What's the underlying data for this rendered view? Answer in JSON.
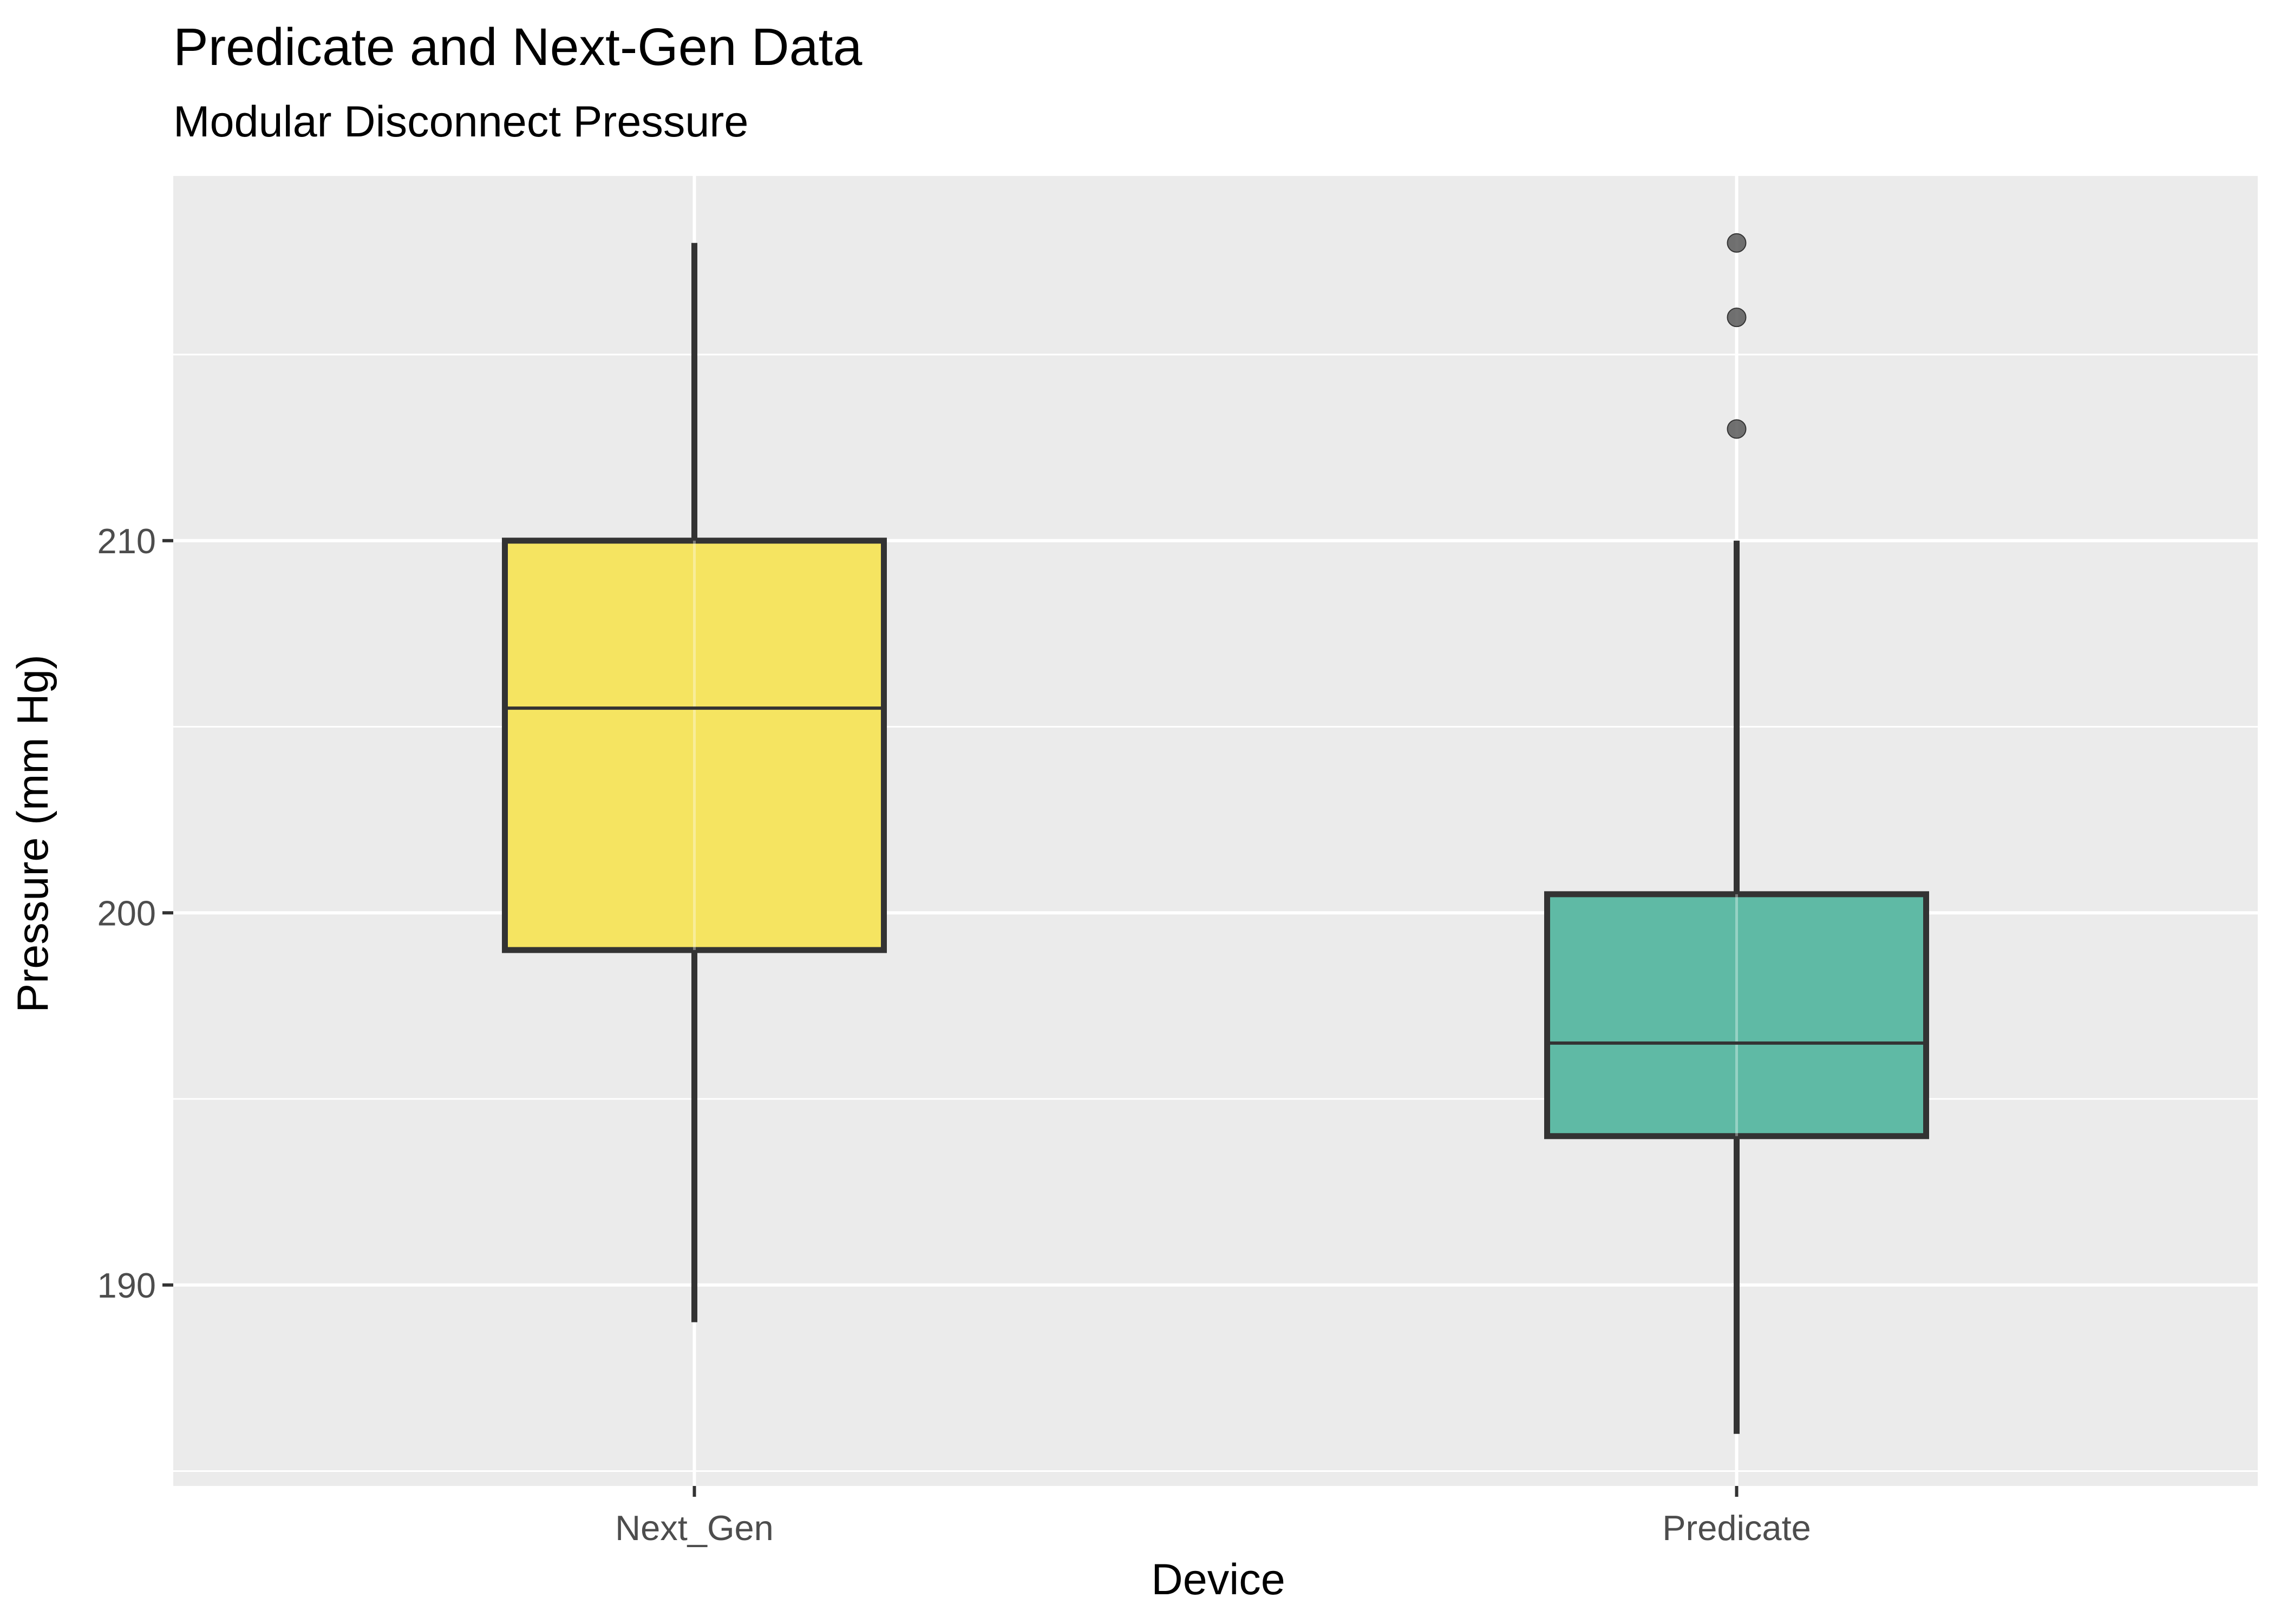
{
  "chart_data": {
    "type": "boxplot",
    "title": "Predicate and Next-Gen Data",
    "subtitle": "Modular Disconnect Pressure",
    "xlabel": "Device",
    "ylabel": "Pressure (mm Hg)",
    "ylim": [
      184.6,
      219.8
    ],
    "yticks": [
      190,
      200,
      210
    ],
    "grid": true,
    "legend": "none",
    "categories": [
      "Next_Gen",
      "Predicate"
    ],
    "boxes": [
      {
        "category": "Next_Gen",
        "lower_whisker": 189,
        "q1": 199,
        "median": 205.5,
        "q3": 210,
        "upper_whisker": 218,
        "outliers": [],
        "color": "#f5e461"
      },
      {
        "category": "Predicate",
        "lower_whisker": 186,
        "q1": 194,
        "median": 196.5,
        "q3": 200.5,
        "upper_whisker": 210,
        "outliers": [
          218,
          216,
          213
        ],
        "color": "#5fbaa5"
      }
    ]
  },
  "colors": {
    "panel_background": "#ebebeb",
    "grid": "#ffffff",
    "box_outline": "#333333",
    "outlier": "#595959"
  }
}
